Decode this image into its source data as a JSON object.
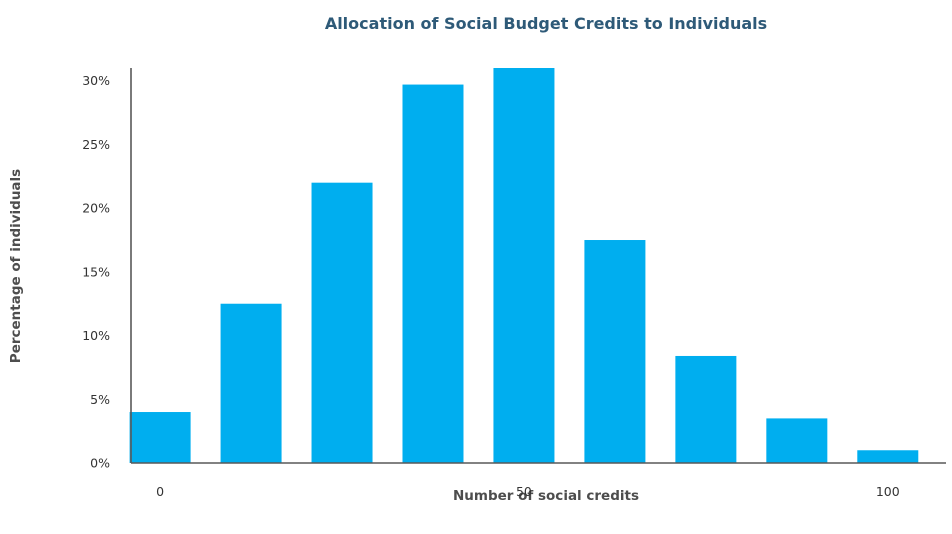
{
  "chart_data": {
    "type": "bar",
    "title": "Allocation of Social Budget Credits to Individuals",
    "xlabel": "Number of social credits",
    "ylabel": "Percentage of individuals",
    "x": [
      0,
      12.5,
      25,
      37.5,
      50,
      62.5,
      75,
      87.5,
      100
    ],
    "values": [
      4,
      12.5,
      22,
      29.7,
      31,
      17.5,
      8.4,
      3.5,
      1
    ],
    "xticks": [
      {
        "value": 0,
        "label": "0"
      },
      {
        "value": 50,
        "label": "50"
      },
      {
        "value": 100,
        "label": "100"
      }
    ],
    "yticks": [
      {
        "value": 0,
        "label": "0%"
      },
      {
        "value": 5,
        "label": "5%"
      },
      {
        "value": 10,
        "label": "10%"
      },
      {
        "value": 15,
        "label": "15%"
      },
      {
        "value": 20,
        "label": "20%"
      },
      {
        "value": 25,
        "label": "25%"
      },
      {
        "value": 30,
        "label": "30%"
      }
    ],
    "xlim": [
      -4,
      108
    ],
    "ylim": [
      0,
      31
    ],
    "grid": false,
    "legend": "none",
    "bar_color": "#00aeef"
  }
}
